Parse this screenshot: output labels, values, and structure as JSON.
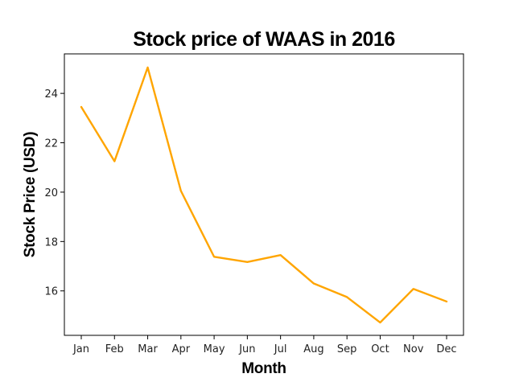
{
  "chart_data": {
    "type": "line",
    "title": "Stock price of WAAS in 2016",
    "xlabel": "Month",
    "ylabel": "Stock Price (USD)",
    "categories": [
      "Jan",
      "Feb",
      "Mar",
      "Apr",
      "May",
      "Jun",
      "Jul",
      "Aug",
      "Sep",
      "Oct",
      "Nov",
      "Dec"
    ],
    "series": [
      {
        "values": [
          23.45,
          21.25,
          25.05,
          20.05,
          17.38,
          17.17,
          17.45,
          16.3,
          15.75,
          14.72,
          16.08,
          15.57
        ],
        "color": "#FFA500"
      }
    ],
    "yticks": [
      16,
      18,
      20,
      22,
      24
    ],
    "ylim": [
      14.2,
      25.6
    ],
    "grid": false,
    "legend": "none"
  }
}
